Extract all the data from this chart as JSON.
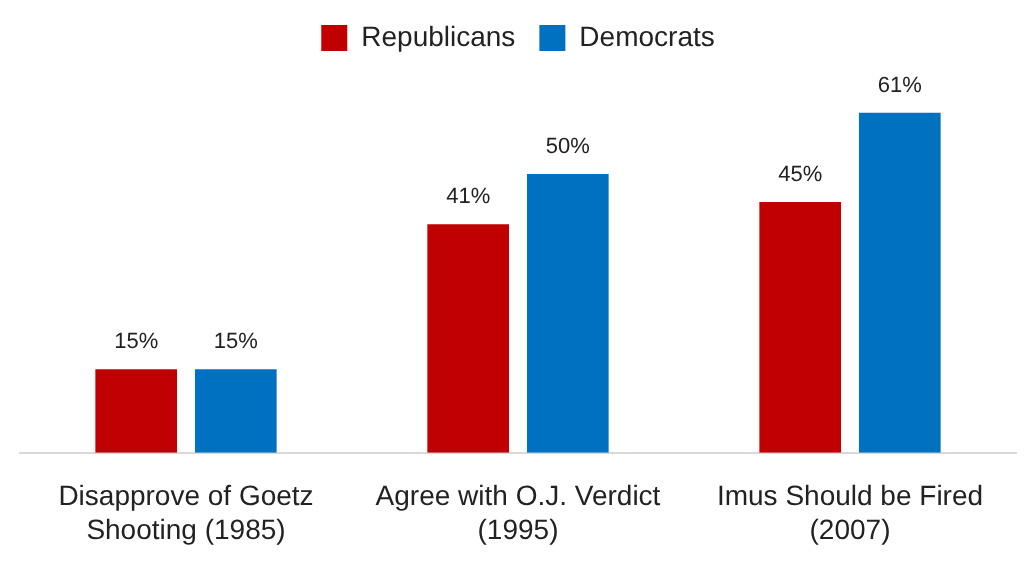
{
  "chart_data": {
    "type": "bar",
    "categories": [
      "Disapprove of Goetz Shooting (1985)",
      "Agree with O.J. Verdict (1995)",
      "Imus Should be Fired (2007)"
    ],
    "series": [
      {
        "name": "Republicans",
        "color": "#c00000",
        "values": [
          15,
          41,
          45
        ],
        "value_labels": [
          "15%",
          "41%",
          "45%"
        ]
      },
      {
        "name": "Democrats",
        "color": "#0070c0",
        "values": [
          15,
          50,
          61
        ],
        "value_labels": [
          "15%",
          "50%",
          "61%"
        ]
      }
    ],
    "legend": "top",
    "grid": false
  }
}
